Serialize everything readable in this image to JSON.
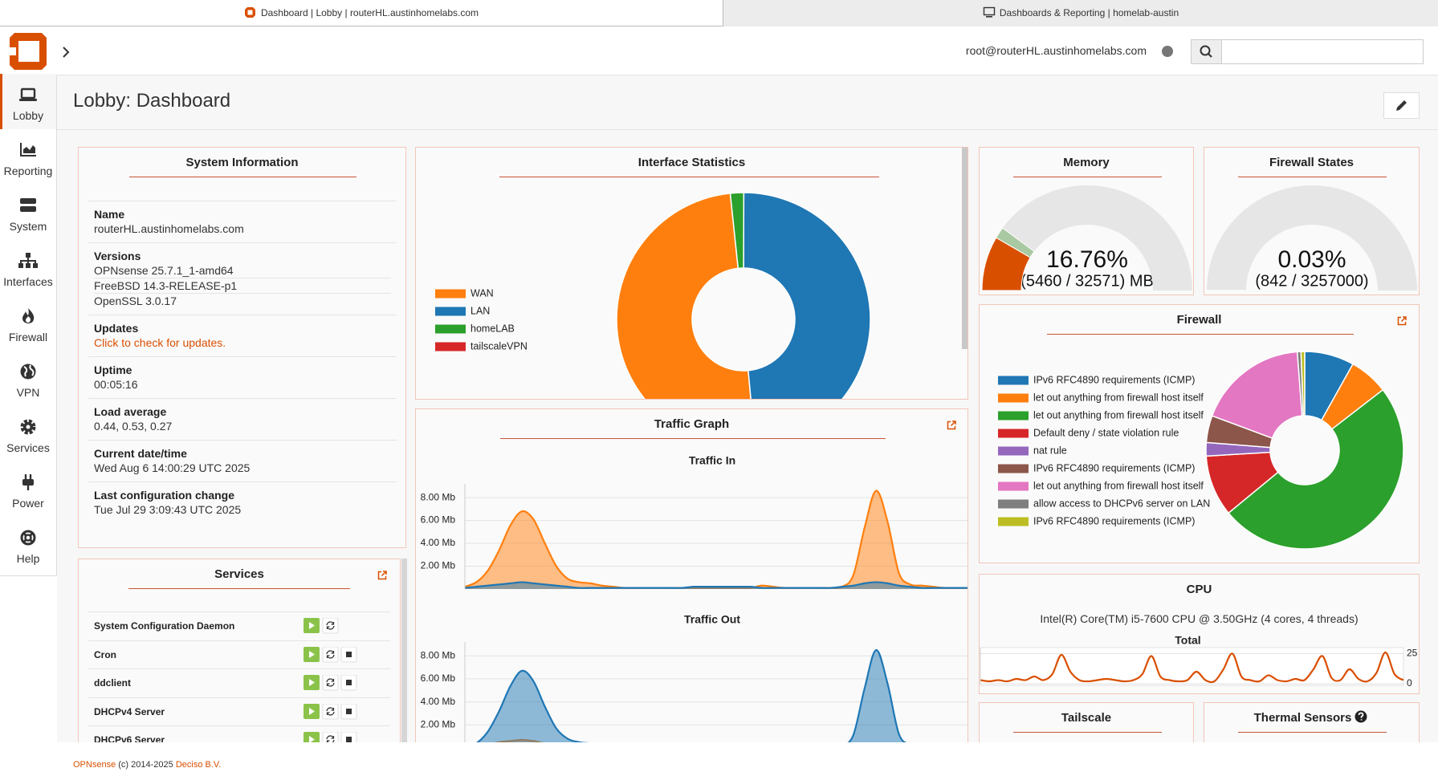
{
  "tabs": [
    {
      "title": "Dashboard | Lobby | routerHL.austinhomelabs.com"
    },
    {
      "title": "Dashboards & Reporting | homelab-austin"
    }
  ],
  "header": {
    "user": "root@routerHL.austinhomelabs.com"
  },
  "sidebar": [
    "Lobby",
    "Reporting",
    "System",
    "Interfaces",
    "Firewall",
    "VPN",
    "Services",
    "Power",
    "Help"
  ],
  "page_title": "Lobby: Dashboard",
  "system_information": {
    "title": "System Information",
    "fields": [
      {
        "label": "Name",
        "values": [
          "routerHL.austinhomelabs.com"
        ]
      },
      {
        "label": "Versions",
        "values": [
          "OPNsense 25.7.1_1-amd64",
          "FreeBSD 14.3-RELEASE-p1",
          "OpenSSL 3.0.17"
        ]
      },
      {
        "label": "Updates",
        "link": "Click to check for updates."
      },
      {
        "label": "Uptime",
        "values": [
          "00:05:16"
        ]
      },
      {
        "label": "Load average",
        "values": [
          "0.44, 0.53, 0.27"
        ]
      },
      {
        "label": "Current date/time",
        "values": [
          "Wed Aug 6 14:00:29 UTC 2025"
        ]
      },
      {
        "label": "Last configuration change",
        "values": [
          "Tue Jul 29 3:09:43 UTC 2025"
        ]
      }
    ]
  },
  "services": {
    "title": "Services",
    "rows": [
      {
        "name": "System Configuration Daemon",
        "stop_button": false
      },
      {
        "name": "Cron",
        "stop_button": true
      },
      {
        "name": "ddclient",
        "stop_button": true
      },
      {
        "name": "DHCPv4 Server",
        "stop_button": true
      },
      {
        "name": "DHCPv6 Server",
        "stop_button": true
      }
    ]
  },
  "interface_statistics": {
    "title": "Interface Statistics",
    "chart": {
      "type": "doughnut",
      "categories": [
        "WAN",
        "LAN",
        "homeLAB",
        "tailscaleVPN"
      ],
      "values": [
        49.8,
        48.5,
        1.7,
        0
      ],
      "colors": [
        "#ff7f0e",
        "#1f77b4",
        "#2ca02c",
        "#d62728"
      ]
    }
  },
  "traffic_graph": {
    "title": "Traffic Graph",
    "charts": [
      {
        "type": "area",
        "title": "Traffic In",
        "ylim": [
          0,
          9.2
        ],
        "yticks": [
          {
            "value": 2,
            "label": "2.00 Mb"
          },
          {
            "value": 4,
            "label": "4.00 Mb"
          },
          {
            "value": 6,
            "label": "6.00 Mb"
          },
          {
            "value": 8,
            "label": "8.00 Mb"
          }
        ],
        "series": [
          {
            "color": "#ff7f0e",
            "values": [
              0.2,
              0.6,
              1.6,
              3.4,
              5.6,
              6.8,
              6.1,
              4.0,
              2.0,
              0.9,
              0.6,
              0.5,
              0.3,
              0.2,
              0.1,
              0.1,
              0.1,
              0.1,
              0.1,
              0.1,
              0.1,
              0.1,
              0.1,
              0.1,
              0.1,
              0.1,
              0.3,
              0.2,
              0.1,
              0.1,
              0.1,
              0.1,
              0.1,
              0.2,
              1.2,
              5.4,
              8.6,
              5.9,
              1.4,
              0.4,
              0.3,
              0.2,
              0.1,
              0.1,
              0.1
            ]
          },
          {
            "color": "#1f77b4",
            "values": [
              0.1,
              0.2,
              0.3,
              0.4,
              0.5,
              0.6,
              0.5,
              0.4,
              0.3,
              0.2,
              0.1,
              0.1,
              0.1,
              0.1,
              0.1,
              0.1,
              0.1,
              0.1,
              0.1,
              0.1,
              0.2,
              0.2,
              0.2,
              0.2,
              0.2,
              0.2,
              0.1,
              0.1,
              0.1,
              0.1,
              0.1,
              0.1,
              0.1,
              0.2,
              0.3,
              0.5,
              0.6,
              0.5,
              0.3,
              0.2,
              0.1,
              0.1,
              0.1,
              0.1,
              0.1
            ]
          }
        ]
      },
      {
        "type": "area",
        "title": "Traffic Out",
        "ylim": [
          0,
          9.2
        ],
        "yticks": [
          {
            "value": 2,
            "label": "2.00 Mb"
          },
          {
            "value": 4,
            "label": "4.00 Mb"
          },
          {
            "value": 6,
            "label": "6.00 Mb"
          },
          {
            "value": 8,
            "label": "8.00 Mb"
          }
        ],
        "series": [
          {
            "color": "#ff7f0e",
            "values": [
              0.1,
              0.2,
              0.3,
              0.5,
              0.6,
              0.7,
              0.6,
              0.4,
              0.3,
              0.2,
              0.1,
              0.1,
              0.1,
              0.1,
              0.1,
              0.1,
              0.1,
              0.1,
              0.1,
              0.1,
              0.1,
              0.1,
              0.1,
              0.1,
              0.1,
              0.1,
              0.1,
              0.1,
              0.1,
              0.1,
              0.1,
              0.1,
              0.1,
              0.1,
              0.1,
              0.1,
              0.1,
              0.1,
              0.1,
              0.1,
              0.1,
              0.1,
              0.1,
              0.1,
              0.1
            ]
          },
          {
            "color": "#1f77b4",
            "values": [
              0.1,
              0.4,
              1.4,
              3.2,
              5.4,
              6.7,
              5.8,
              3.6,
              1.7,
              0.8,
              0.5,
              0.4,
              0.3,
              0.2,
              0.1,
              0.1,
              0.1,
              0.1,
              0.1,
              0.1,
              0.1,
              0.1,
              0.1,
              0.1,
              0.1,
              0.1,
              0.3,
              0.2,
              0.1,
              0.1,
              0.1,
              0.1,
              0.1,
              0.2,
              1.1,
              5.2,
              8.5,
              5.6,
              1.2,
              0.3,
              0.2,
              0.1,
              0.1,
              0.1,
              0.1
            ]
          }
        ]
      }
    ]
  },
  "memory": {
    "title": "Memory",
    "range": [
      0,
      100
    ],
    "value": 16.76,
    "value_label": "16.76%",
    "secondary_value": 3.5,
    "detail": "(5460 / 32571) MB"
  },
  "firewall_states": {
    "title": "Firewall States",
    "range": [
      0,
      100
    ],
    "value": 0.03,
    "value_label": "0.03%",
    "detail": "(842 / 3257000)"
  },
  "firewall": {
    "title": "Firewall",
    "chart": {
      "type": "doughnut",
      "categories": [
        "IPv6 RFC4890 requirements (ICMP)",
        "let out anything from firewall host itself",
        "let out anything from firewall host itself",
        "Default deny / state violation rule",
        "nat rule",
        "IPv6 RFC4890 requirements (ICMP)",
        "let out anything from firewall host itself",
        "allow access to DHCPv6 server on LAN",
        "IPv6 RFC4890 requirements (ICMP)"
      ],
      "values": [
        8.1,
        6.4,
        49.4,
        10,
        2.2,
        4.4,
        18.1,
        0.6,
        0.6
      ],
      "colors": [
        "#1f77b4",
        "#ff7f0e",
        "#2ca02c",
        "#d62728",
        "#9467bd",
        "#8c564b",
        "#e377c2",
        "#7f7f7f",
        "#bcbd22"
      ]
    }
  },
  "cpu": {
    "title": "CPU",
    "model": "Intel(R) Core(TM) i5-7600 CPU @ 3.50GHz (4 cores, 4 threads)",
    "chart": {
      "type": "line",
      "title": "Total",
      "color": "#d94f00",
      "ylim": [
        0,
        30
      ],
      "yticks": [
        0,
        25
      ],
      "values": [
        3,
        2,
        3,
        2,
        4,
        3,
        6,
        3,
        8,
        24,
        10,
        3,
        2,
        3,
        4,
        3,
        2,
        3,
        8,
        23,
        6,
        3,
        2,
        3,
        10,
        3,
        2,
        12,
        25,
        6,
        3,
        2,
        7,
        3,
        2,
        4,
        3,
        12,
        23,
        5,
        3,
        12,
        4,
        2,
        9,
        26,
        8,
        3
      ]
    }
  },
  "tailscale": {
    "title": "Tailscale"
  },
  "thermal_sensors": {
    "title": "Thermal Sensors"
  },
  "footer": {
    "brand": "OPNsense",
    "copyright": "(c) 2014-2025",
    "company": "Deciso B.V."
  }
}
